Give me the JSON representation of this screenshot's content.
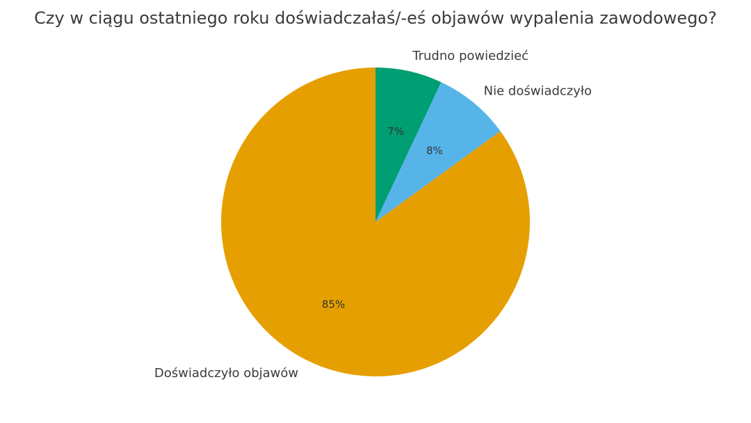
{
  "chart_data": {
    "type": "pie",
    "title": "Czy w ciągu ostatniego roku doświadczałaś/-eś objawów wypalenia zawodowego?",
    "start_angle_deg": 90,
    "direction": "clockwise",
    "slices": [
      {
        "label": "Trudno powiedzieć",
        "value": 7,
        "percent_label": "7%",
        "color": "#009E73"
      },
      {
        "label": "Nie doświadczyło",
        "value": 8,
        "percent_label": "8%",
        "color": "#56B4E9"
      },
      {
        "label": "Doświadczyło objawów",
        "value": 85,
        "percent_label": "85%",
        "color": "#E69F00"
      }
    ]
  }
}
